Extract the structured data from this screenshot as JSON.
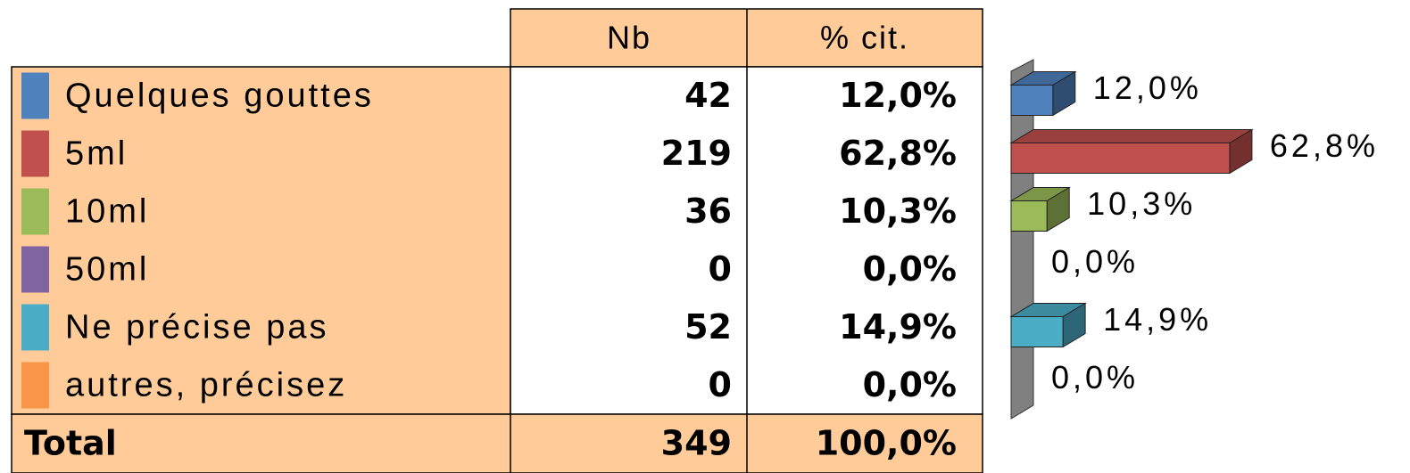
{
  "table": {
    "header": [
      "Nb",
      "% cit."
    ],
    "rows": [
      [
        "Quelques gouttes",
        42,
        "12,0%"
      ],
      [
        "5ml",
        219,
        "62,8%"
      ],
      [
        "10ml",
        36,
        "10,3%"
      ],
      [
        "50ml",
        0,
        "0,0%"
      ],
      [
        "Ne précise pas",
        52,
        "14,9%"
      ],
      [
        "autres, précisez",
        0,
        "0,0%"
      ]
    ],
    "total": [
      "Total",
      349,
      "100,0%"
    ]
  },
  "chart_data": {
    "type": "bar",
    "orientation": "horizontal",
    "values": [
      12.0,
      62.8,
      10.3,
      0.0,
      14.9,
      0.0
    ],
    "value_labels": [
      "12,0%",
      "62,8%",
      "10,3%",
      "0,0%",
      "14,9%",
      "0,0%"
    ],
    "colors": [
      "#4f81bd",
      "#c0504d",
      "#9bbb59",
      "#8064a2",
      "#4bacc6",
      "#f79646"
    ],
    "xlim": [
      0,
      70
    ]
  }
}
